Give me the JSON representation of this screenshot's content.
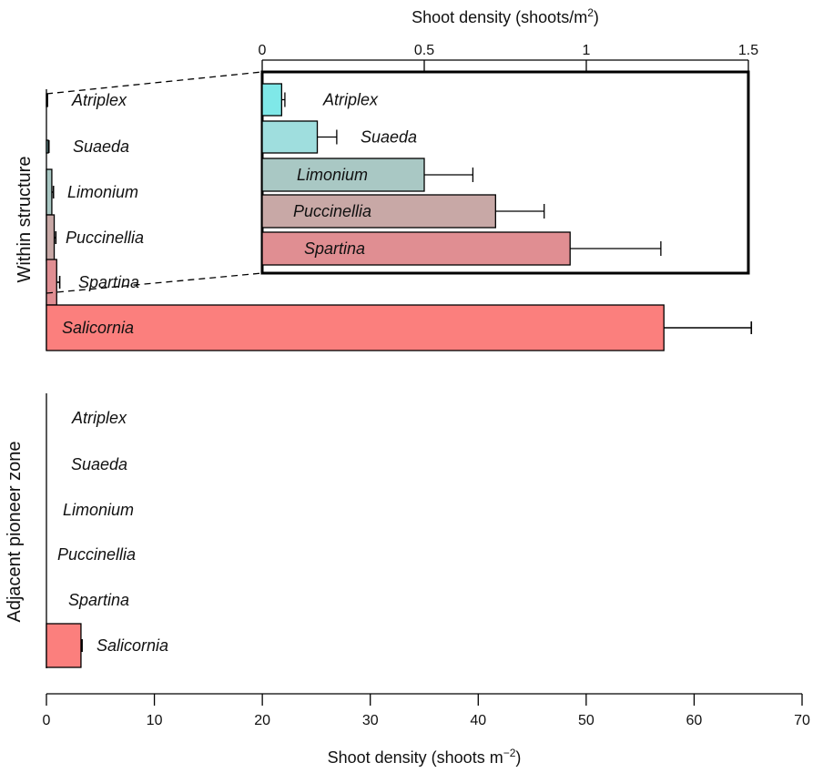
{
  "chart_data": [
    {
      "type": "bar",
      "orientation": "horizontal",
      "panel_label": "Within structure",
      "categories": [
        "Atriplex",
        "Suaeda",
        "Limonium",
        "Puccinellia",
        "Spartina",
        "Salicornia"
      ],
      "values": [
        0.06,
        0.17,
        0.5,
        0.72,
        0.95,
        57.2
      ],
      "errors": [
        0.01,
        0.06,
        0.15,
        0.15,
        0.28,
        8.1
      ],
      "colors": [
        "#7fe8e8",
        "#9fdede",
        "#a9c8c4",
        "#c8a8a6",
        "#e08e92",
        "#fb7f7d"
      ],
      "xlabel": "Shoot density (shoots m",
      "xlabel_sup": "−2",
      "xlabel_close": ")",
      "xlim": [
        0,
        70
      ],
      "xticks": [
        "0",
        "10",
        "20",
        "30",
        "40",
        "50",
        "60",
        "70"
      ],
      "grid": false
    },
    {
      "type": "bar",
      "orientation": "horizontal",
      "panel_label": "Within structure (inset, magnified)",
      "categories": [
        "Atriplex",
        "Suaeda",
        "Limonium",
        "Puccinellia",
        "Spartina"
      ],
      "values": [
        0.06,
        0.17,
        0.5,
        0.72,
        0.95
      ],
      "errors": [
        0.01,
        0.06,
        0.15,
        0.15,
        0.28
      ],
      "colors": [
        "#7fe8e8",
        "#9fdede",
        "#a9c8c4",
        "#c8a8a6",
        "#e08e92"
      ],
      "xlabel": "Shoot density (shoots/m",
      "xlabel_sup": "2",
      "xlabel_close": ")",
      "xlim": [
        0,
        1.5
      ],
      "xticks": [
        "0",
        "0.5",
        "1",
        "1.5"
      ],
      "grid": false
    },
    {
      "type": "bar",
      "orientation": "horizontal",
      "panel_label": "Adjacent pioneer zone",
      "categories": [
        "Atriplex",
        "Suaeda",
        "Limonium",
        "Puccinellia",
        "Spartina",
        "Salicornia"
      ],
      "values": [
        0,
        0,
        0,
        0,
        0,
        3.2
      ],
      "errors": [
        0,
        0,
        0,
        0,
        0,
        0.1
      ],
      "colors": [
        "#7fe8e8",
        "#9fdede",
        "#a9c8c4",
        "#c8a8a6",
        "#e08e92",
        "#fb7f7d"
      ],
      "xlim": [
        0,
        70
      ],
      "grid": false
    }
  ]
}
